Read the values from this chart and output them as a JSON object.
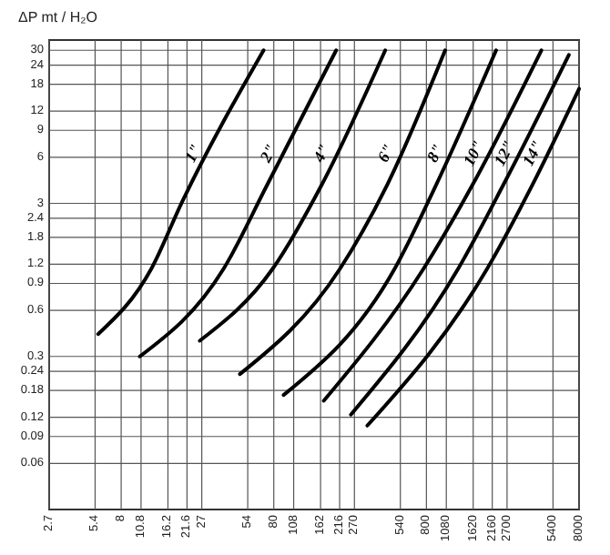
{
  "chart_data": {
    "type": "line",
    "ylabel": "ΔP mt / H₂O",
    "log": "xy",
    "grid": true,
    "legend": false,
    "marker": "none",
    "line_style": "solid",
    "xlim": [
      2.7,
      8000
    ],
    "ylim": [
      0.03,
      35
    ],
    "xticks": [
      2.7,
      5.4,
      8,
      10.8,
      16.2,
      21.6,
      27,
      54,
      80,
      108,
      162,
      216,
      270,
      540,
      800,
      1080,
      1620,
      2160,
      2700,
      5400,
      8000
    ],
    "yticks": [
      0.06,
      0.09,
      0.12,
      0.18,
      0.24,
      0.3,
      0.6,
      0.9,
      1.2,
      1.8,
      2.4,
      3,
      6,
      9,
      12,
      18,
      24,
      30
    ],
    "series": [
      {
        "name": "1\"",
        "color": "#000000",
        "x": [
          5.65,
          12.6,
          20,
          68.6
        ],
        "values": [
          0.42,
          1.12,
          3.05,
          30
        ]
      },
      {
        "name": "2\"",
        "color": "#000000",
        "x": [
          10.6,
          37.5,
          72.5,
          205
        ],
        "values": [
          0.3,
          1.12,
          3.97,
          30
        ]
      },
      {
        "name": "4\"",
        "color": "#000000",
        "x": [
          26.2,
          78.6,
          165,
          430
        ],
        "values": [
          0.38,
          1.12,
          3.97,
          30
        ]
      },
      {
        "name": "6\"",
        "color": "#000000",
        "x": [
          48,
          217,
          443,
          1061
        ],
        "values": [
          0.23,
          1.12,
          3.97,
          30
        ]
      },
      {
        "name": "8\"",
        "color": "#000000",
        "x": [
          92.8,
          495,
          927,
          2290
        ],
        "values": [
          0.168,
          1.12,
          3.97,
          30
        ]
      },
      {
        "name": "10\"",
        "color": "#000000",
        "x": [
          170,
          765,
          1605,
          4533
        ],
        "values": [
          0.154,
          1.12,
          3.97,
          30
        ]
      },
      {
        "name": "12\"",
        "color": "#000000",
        "x": [
          256,
          1290,
          2555,
          6862
        ],
        "values": [
          0.125,
          1.12,
          3.97,
          28
        ]
      },
      {
        "name": "14\"",
        "color": "#000000",
        "x": [
          328,
          1998,
          3960,
          8000
        ],
        "values": [
          0.106,
          1.12,
          3.97,
          16.8
        ]
      }
    ]
  }
}
